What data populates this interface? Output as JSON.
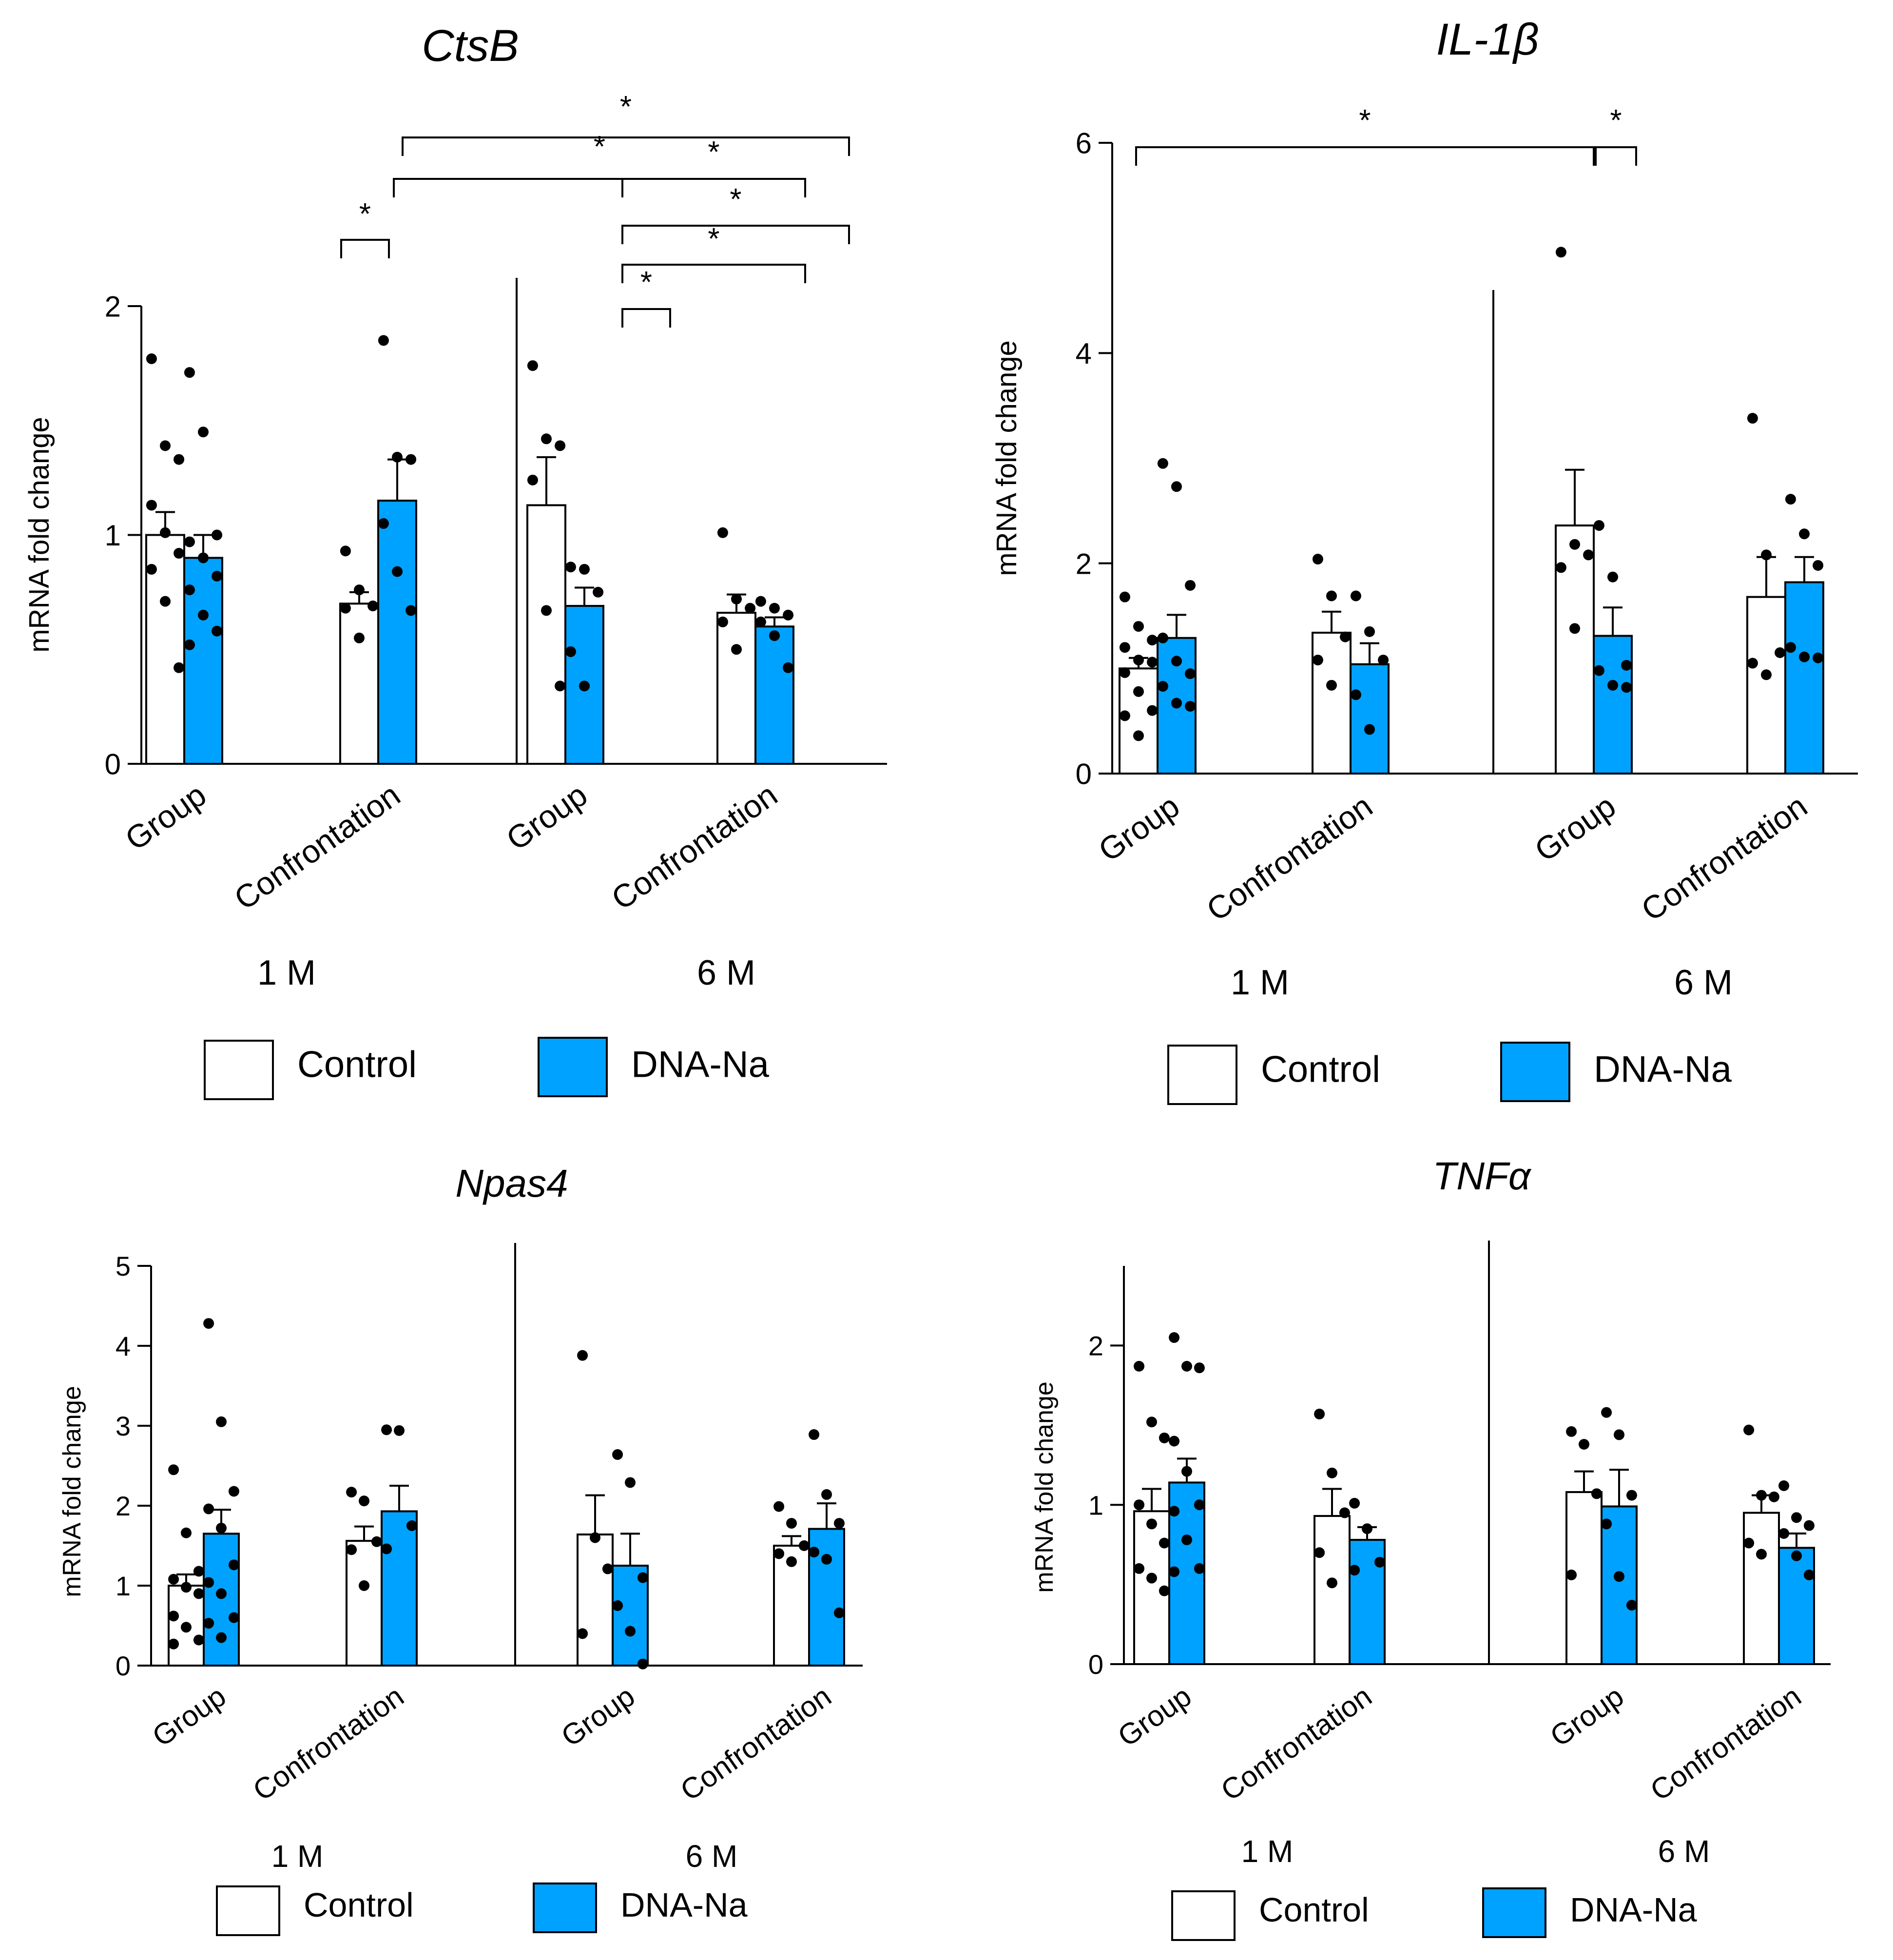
{
  "figure": {
    "colors": {
      "control": "#ffffff",
      "dna": "#00a2ff",
      "stroke": "#000000"
    }
  },
  "chart_data": [
    {
      "id": "ctsb",
      "type": "bar",
      "title": "CtsB",
      "ylabel": "mRNA fold change",
      "ylim": [
        0,
        2
      ],
      "yticks": [
        0,
        1,
        2
      ],
      "categories": [
        "Group",
        "Confrontation",
        "Group",
        "Confrontation"
      ],
      "timepoints": [
        "1 M",
        "6 M"
      ],
      "legend": {
        "control": "Control",
        "dna": "DNA-Na"
      },
      "series": [
        {
          "name": "Control",
          "values": [
            1.0,
            0.7,
            1.13,
            0.66
          ],
          "errors": [
            0.1,
            0.05,
            0.21,
            0.08
          ],
          "points": [
            [
              1.77,
              1.39,
              1.33,
              1.13,
              1.01,
              0.92,
              0.85,
              0.71,
              0.42
            ],
            [
              0.93,
              0.76,
              0.69,
              0.68,
              0.55
            ],
            [
              1.74,
              1.42,
              1.39,
              1.24,
              0.67,
              0.34
            ],
            [
              1.01,
              0.72,
              0.68,
              0.62,
              0.5
            ]
          ]
        },
        {
          "name": "DNA-Na",
          "values": [
            0.9,
            1.15,
            0.69,
            0.6
          ],
          "errors": [
            0.1,
            0.18,
            0.08,
            0.04
          ],
          "points": [
            [
              1.71,
              1.45,
              1.0,
              0.97,
              0.9,
              0.82,
              0.76,
              0.65,
              0.58,
              0.52
            ],
            [
              1.85,
              1.34,
              1.33,
              1.05,
              0.84,
              0.67
            ],
            [
              0.86,
              0.85,
              0.75,
              0.49,
              0.34
            ],
            [
              0.71,
              0.68,
              0.65,
              0.62,
              0.56,
              0.42
            ]
          ]
        }
      ],
      "significance": [
        {
          "from": [
            1,
            0
          ],
          "to": [
            1,
            1
          ],
          "label": "*"
        },
        {
          "from": [
            2,
            0
          ],
          "to": [
            2,
            1
          ],
          "label": "*"
        },
        {
          "from": [
            2,
            0
          ],
          "to": [
            3,
            0
          ],
          "label": "*"
        },
        {
          "from": [
            2,
            0
          ],
          "to": [
            3,
            1
          ],
          "label": "*"
        },
        {
          "from": [
            2,
            0
          ],
          "to": [
            3,
            0
          ],
          "label": "*"
        },
        {
          "from": [
            1,
            1
          ],
          "to": [
            3,
            0
          ],
          "label": "*"
        },
        {
          "from": [
            1,
            1
          ],
          "to": [
            3,
            1
          ],
          "label": "*"
        }
      ]
    },
    {
      "id": "il1b",
      "type": "bar",
      "title": "IL-1β",
      "ylabel": "mRNA fold change",
      "ylim": [
        0,
        6
      ],
      "yticks": [
        0,
        2,
        4,
        6
      ],
      "categories": [
        "Group",
        "Confrontation",
        "Group",
        "Confrontation"
      ],
      "timepoints": [
        "1 M",
        "6 M"
      ],
      "legend": {
        "control": "Control",
        "dna": "DNA-Na"
      },
      "series": [
        {
          "name": "Control",
          "values": [
            1.0,
            1.34,
            2.36,
            1.68
          ],
          "errors": [
            0.1,
            0.2,
            0.53,
            0.38
          ],
          "points": [
            [
              1.68,
              1.4,
              1.27,
              1.2,
              1.08,
              1.06,
              0.96,
              0.78,
              0.6,
              0.55,
              0.36
            ],
            [
              2.04,
              1.69,
              1.3,
              1.08,
              0.84
            ],
            [
              4.96,
              2.18,
              2.08,
              1.96,
              1.38
            ],
            [
              3.38,
              2.08,
              1.15,
              1.05,
              0.94
            ]
          ]
        },
        {
          "name": "DNA-Na",
          "values": [
            1.29,
            1.04,
            1.31,
            1.82
          ],
          "errors": [
            0.22,
            0.2,
            0.27,
            0.24
          ],
          "points": [
            [
              2.95,
              2.73,
              1.79,
              1.29,
              1.07,
              0.95,
              0.83,
              0.67,
              0.64
            ],
            [
              1.69,
              1.35,
              1.08,
              0.75,
              0.42
            ],
            [
              2.36,
              1.87,
              1.03,
              0.98,
              0.84,
              0.82
            ],
            [
              2.61,
              2.28,
              1.98,
              1.2,
              1.11,
              1.1
            ]
          ]
        }
      ],
      "significance": [
        {
          "from": [
            0,
            0
          ],
          "to": [
            2,
            0
          ],
          "label": "*"
        },
        {
          "from": [
            2,
            0
          ],
          "to": [
            2,
            1
          ],
          "label": "*"
        }
      ]
    },
    {
      "id": "npas4",
      "type": "bar",
      "title": "Npas4",
      "ylabel": "mRNA fold change",
      "ylim": [
        0,
        5
      ],
      "yticks": [
        0,
        1,
        2,
        3,
        4,
        5
      ],
      "categories": [
        "Group",
        "Confrontation",
        "Group",
        "Confrontation"
      ],
      "timepoints": [
        "1 M",
        "6 M"
      ],
      "legend": {
        "control": "Control",
        "dna": "DNA-Na"
      },
      "series": [
        {
          "name": "Control",
          "values": [
            1.0,
            1.56,
            1.64,
            1.5
          ],
          "errors": [
            0.14,
            0.18,
            0.49,
            0.12
          ],
          "points": [
            [
              2.45,
              1.66,
              1.18,
              1.08,
              0.98,
              0.9,
              0.62,
              0.48,
              0.32,
              0.27
            ],
            [
              2.17,
              2.06,
              1.55,
              1.45,
              1.0
            ],
            [
              3.88,
              1.6,
              1.21,
              0.4
            ],
            [
              1.99,
              1.78,
              1.5,
              1.4,
              1.3
            ]
          ]
        },
        {
          "name": "DNA-Na",
          "values": [
            1.65,
            1.93,
            1.25,
            1.71
          ],
          "errors": [
            0.3,
            0.32,
            0.4,
            0.32
          ],
          "points": [
            [
              4.28,
              3.05,
              2.18,
              1.96,
              1.72,
              1.26,
              1.04,
              0.9,
              0.6,
              0.53,
              0.35
            ],
            [
              2.95,
              2.94,
              1.75,
              1.46
            ],
            [
              2.64,
              2.29,
              1.1,
              0.75,
              0.43,
              0.02
            ],
            [
              2.89,
              2.14,
              1.78,
              1.42,
              1.33,
              0.66
            ]
          ]
        }
      ],
      "significance": []
    },
    {
      "id": "tnfa",
      "type": "bar",
      "title": "TNFα",
      "ylabel": "mRNA fold change",
      "ylim": [
        0,
        2.5
      ],
      "yticks": [
        0,
        1,
        2
      ],
      "categories": [
        "Group",
        "Confrontation",
        "Group",
        "Confrontation"
      ],
      "timepoints": [
        "1 M",
        "6 M"
      ],
      "legend": {
        "control": "Control",
        "dna": "DNA-Na"
      },
      "series": [
        {
          "name": "Control",
          "values": [
            0.96,
            0.93,
            1.08,
            0.95
          ],
          "errors": [
            0.14,
            0.17,
            0.13,
            0.11
          ],
          "points": [
            [
              1.87,
              1.52,
              1.42,
              1.0,
              0.88,
              0.76,
              0.6,
              0.54,
              0.46
            ],
            [
              1.57,
              1.2,
              0.95,
              0.7,
              0.51
            ],
            [
              1.46,
              1.38,
              1.07,
              0.56
            ],
            [
              1.47,
              1.06,
              1.05,
              0.76,
              0.69
            ]
          ]
        },
        {
          "name": "DNA-Na",
          "values": [
            1.14,
            0.78,
            0.99,
            0.73
          ],
          "errors": [
            0.15,
            0.08,
            0.23,
            0.09
          ],
          "points": [
            [
              2.05,
              1.87,
              1.86,
              1.4,
              1.21,
              1.0,
              0.96,
              0.78,
              0.6,
              0.58
            ],
            [
              1.01,
              0.85,
              0.64,
              0.59
            ],
            [
              1.58,
              1.44,
              1.06,
              0.88,
              0.55,
              0.37
            ],
            [
              1.12,
              0.92,
              0.87,
              0.82,
              0.68,
              0.56
            ]
          ]
        }
      ],
      "significance": []
    }
  ]
}
